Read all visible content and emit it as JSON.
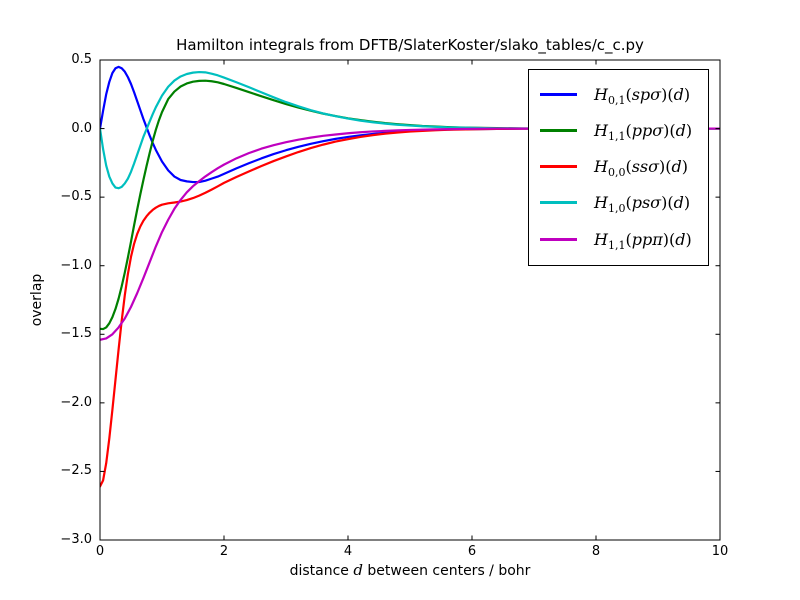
{
  "figure": {
    "background": "#ffffff",
    "border_color": "#000000"
  },
  "chart_data": {
    "type": "line",
    "title": "Hamilton integrals from DFTB/SlaterKoster/slako_tables/c_c.py",
    "xlabel": "distance d between centers / bohr",
    "xlabel_parts": {
      "pre": "distance",
      "var": "d",
      "post": "between centers / bohr"
    },
    "ylabel": "overlap",
    "xlim": [
      0,
      10
    ],
    "ylim": [
      -3.0,
      0.5
    ],
    "grid": false,
    "legend_position": "upper right",
    "x_ticks": [
      {
        "value": 0,
        "label": "0"
      },
      {
        "value": 2,
        "label": "2"
      },
      {
        "value": 4,
        "label": "4"
      },
      {
        "value": 6,
        "label": "6"
      },
      {
        "value": 8,
        "label": "8"
      },
      {
        "value": 10,
        "label": "10"
      }
    ],
    "y_ticks": [
      {
        "value": 0.5,
        "label": "0.5"
      },
      {
        "value": 0.0,
        "label": "0.0"
      },
      {
        "value": -0.5,
        "label": "−0.5"
      },
      {
        "value": -1.0,
        "label": "−1.0"
      },
      {
        "value": -1.5,
        "label": "−1.5"
      },
      {
        "value": -2.0,
        "label": "−2.0"
      },
      {
        "value": -2.5,
        "label": "−2.5"
      },
      {
        "value": -3.0,
        "label": "−3.0"
      }
    ],
    "series": [
      {
        "name": "H_{0,1}(spσ)(d)",
        "legend": {
          "base": "H",
          "sub": "0,1",
          "arg": "spσ",
          "var": "d"
        },
        "color": "#0000ff",
        "points": [
          [
            0,
            0
          ],
          [
            0.05,
            0.13
          ],
          [
            0.1,
            0.25
          ],
          [
            0.15,
            0.34
          ],
          [
            0.2,
            0.405
          ],
          [
            0.25,
            0.44
          ],
          [
            0.3,
            0.45
          ],
          [
            0.35,
            0.44
          ],
          [
            0.4,
            0.415
          ],
          [
            0.45,
            0.375
          ],
          [
            0.5,
            0.325
          ],
          [
            0.55,
            0.265
          ],
          [
            0.6,
            0.2
          ],
          [
            0.65,
            0.135
          ],
          [
            0.7,
            0.07
          ],
          [
            0.75,
            0.01
          ],
          [
            0.8,
            -0.05
          ],
          [
            0.85,
            -0.105
          ],
          [
            0.9,
            -0.155
          ],
          [
            1.0,
            -0.24
          ],
          [
            1.1,
            -0.305
          ],
          [
            1.2,
            -0.35
          ],
          [
            1.3,
            -0.375
          ],
          [
            1.4,
            -0.385
          ],
          [
            1.5,
            -0.39
          ],
          [
            1.6,
            -0.39
          ],
          [
            1.7,
            -0.38
          ],
          [
            1.8,
            -0.365
          ],
          [
            1.9,
            -0.35
          ],
          [
            2.0,
            -0.33
          ],
          [
            2.2,
            -0.29
          ],
          [
            2.4,
            -0.253
          ],
          [
            2.6,
            -0.218
          ],
          [
            2.8,
            -0.186
          ],
          [
            3.0,
            -0.158
          ],
          [
            3.2,
            -0.133
          ],
          [
            3.4,
            -0.111
          ],
          [
            3.6,
            -0.092
          ],
          [
            3.8,
            -0.075
          ],
          [
            4.0,
            -0.061
          ],
          [
            4.2,
            -0.049
          ],
          [
            4.4,
            -0.039
          ],
          [
            4.6,
            -0.031
          ],
          [
            4.8,
            -0.024
          ],
          [
            5.0,
            -0.018
          ],
          [
            5.2,
            -0.014
          ],
          [
            5.4,
            -0.01
          ],
          [
            5.6,
            -0.007
          ],
          [
            5.8,
            -0.005
          ],
          [
            6.0,
            -0.004
          ],
          [
            6.4,
            -0.002
          ],
          [
            6.8,
            -0.001
          ],
          [
            7.2,
            0
          ],
          [
            10,
            0
          ]
        ]
      },
      {
        "name": "H_{1,1}(ppσ)(d)",
        "legend": {
          "base": "H",
          "sub": "1,1",
          "arg": "ppσ",
          "var": "d"
        },
        "color": "#008000",
        "points": [
          [
            0,
            -1.46
          ],
          [
            0.05,
            -1.462
          ],
          [
            0.1,
            -1.45
          ],
          [
            0.15,
            -1.42
          ],
          [
            0.2,
            -1.375
          ],
          [
            0.25,
            -1.315
          ],
          [
            0.3,
            -1.24
          ],
          [
            0.35,
            -1.15
          ],
          [
            0.4,
            -1.05
          ],
          [
            0.45,
            -0.94
          ],
          [
            0.5,
            -0.825
          ],
          [
            0.55,
            -0.705
          ],
          [
            0.6,
            -0.59
          ],
          [
            0.65,
            -0.48
          ],
          [
            0.7,
            -0.375
          ],
          [
            0.75,
            -0.275
          ],
          [
            0.8,
            -0.18
          ],
          [
            0.85,
            -0.09
          ],
          [
            0.9,
            -0.01
          ],
          [
            0.95,
            0.06
          ],
          [
            1.0,
            0.12
          ],
          [
            1.1,
            0.215
          ],
          [
            1.2,
            0.27
          ],
          [
            1.3,
            0.307
          ],
          [
            1.4,
            0.329
          ],
          [
            1.5,
            0.342
          ],
          [
            1.6,
            0.348
          ],
          [
            1.7,
            0.349
          ],
          [
            1.8,
            0.345
          ],
          [
            1.9,
            0.337
          ],
          [
            2.0,
            0.325
          ],
          [
            2.2,
            0.296
          ],
          [
            2.4,
            0.266
          ],
          [
            2.6,
            0.236
          ],
          [
            2.8,
            0.207
          ],
          [
            3.0,
            0.179
          ],
          [
            3.2,
            0.153
          ],
          [
            3.4,
            0.13
          ],
          [
            3.6,
            0.109
          ],
          [
            3.8,
            0.091
          ],
          [
            4.0,
            0.075
          ],
          [
            4.2,
            0.062
          ],
          [
            4.4,
            0.05
          ],
          [
            4.6,
            0.04
          ],
          [
            4.8,
            0.032
          ],
          [
            5.0,
            0.025
          ],
          [
            5.2,
            0.019
          ],
          [
            5.4,
            0.015
          ],
          [
            5.6,
            0.011
          ],
          [
            5.8,
            0.008
          ],
          [
            6.0,
            0.006
          ],
          [
            6.4,
            0.003
          ],
          [
            6.8,
            0.001
          ],
          [
            7.2,
            0
          ],
          [
            10,
            0
          ]
        ]
      },
      {
        "name": "H_{0,0}(ssσ)(d)",
        "legend": {
          "base": "H",
          "sub": "0,0",
          "arg": "ssσ",
          "var": "d"
        },
        "color": "#ff0000",
        "points": [
          [
            0,
            -2.61
          ],
          [
            0.05,
            -2.565
          ],
          [
            0.1,
            -2.44
          ],
          [
            0.15,
            -2.26
          ],
          [
            0.2,
            -2.05
          ],
          [
            0.25,
            -1.83
          ],
          [
            0.3,
            -1.61
          ],
          [
            0.35,
            -1.4
          ],
          [
            0.4,
            -1.215
          ],
          [
            0.45,
            -1.06
          ],
          [
            0.5,
            -0.935
          ],
          [
            0.55,
            -0.84
          ],
          [
            0.6,
            -0.768
          ],
          [
            0.65,
            -0.714
          ],
          [
            0.7,
            -0.672
          ],
          [
            0.75,
            -0.64
          ],
          [
            0.8,
            -0.614
          ],
          [
            0.85,
            -0.593
          ],
          [
            0.9,
            -0.577
          ],
          [
            0.95,
            -0.564
          ],
          [
            1.0,
            -0.555
          ],
          [
            1.1,
            -0.545
          ],
          [
            1.2,
            -0.539
          ],
          [
            1.3,
            -0.532
          ],
          [
            1.4,
            -0.521
          ],
          [
            1.5,
            -0.507
          ],
          [
            1.6,
            -0.489
          ],
          [
            1.7,
            -0.468
          ],
          [
            1.8,
            -0.445
          ],
          [
            1.9,
            -0.421
          ],
          [
            2.0,
            -0.396
          ],
          [
            2.2,
            -0.353
          ],
          [
            2.4,
            -0.313
          ],
          [
            2.6,
            -0.274
          ],
          [
            2.8,
            -0.237
          ],
          [
            3.0,
            -0.203
          ],
          [
            3.2,
            -0.171
          ],
          [
            3.4,
            -0.142
          ],
          [
            3.6,
            -0.117
          ],
          [
            3.8,
            -0.095
          ],
          [
            4.0,
            -0.077
          ],
          [
            4.2,
            -0.061
          ],
          [
            4.4,
            -0.048
          ],
          [
            4.6,
            -0.037
          ],
          [
            4.8,
            -0.029
          ],
          [
            5.0,
            -0.022
          ],
          [
            5.2,
            -0.017
          ],
          [
            5.4,
            -0.012
          ],
          [
            5.6,
            -0.009
          ],
          [
            5.8,
            -0.007
          ],
          [
            6.0,
            -0.005
          ],
          [
            6.4,
            -0.002
          ],
          [
            6.8,
            -0.001
          ],
          [
            7.2,
            0
          ],
          [
            10,
            0
          ]
        ]
      },
      {
        "name": "H_{1,0}(psσ)(d)",
        "legend": {
          "base": "H",
          "sub": "1,0",
          "arg": "psσ",
          "var": "d"
        },
        "color": "#00bfbf",
        "points": [
          [
            0,
            0
          ],
          [
            0.05,
            -0.15
          ],
          [
            0.1,
            -0.27
          ],
          [
            0.15,
            -0.35
          ],
          [
            0.2,
            -0.4
          ],
          [
            0.25,
            -0.43
          ],
          [
            0.3,
            -0.435
          ],
          [
            0.35,
            -0.425
          ],
          [
            0.4,
            -0.4
          ],
          [
            0.45,
            -0.365
          ],
          [
            0.5,
            -0.315
          ],
          [
            0.55,
            -0.255
          ],
          [
            0.6,
            -0.19
          ],
          [
            0.65,
            -0.125
          ],
          [
            0.7,
            -0.06
          ],
          [
            0.75,
            -0.005
          ],
          [
            0.8,
            0.05
          ],
          [
            0.85,
            0.105
          ],
          [
            0.9,
            0.155
          ],
          [
            1.0,
            0.24
          ],
          [
            1.1,
            0.305
          ],
          [
            1.2,
            0.35
          ],
          [
            1.3,
            0.38
          ],
          [
            1.4,
            0.398
          ],
          [
            1.5,
            0.408
          ],
          [
            1.6,
            0.412
          ],
          [
            1.7,
            0.41
          ],
          [
            1.8,
            0.4
          ],
          [
            1.9,
            0.388
          ],
          [
            2.0,
            0.372
          ],
          [
            2.2,
            0.338
          ],
          [
            2.4,
            0.302
          ],
          [
            2.6,
            0.265
          ],
          [
            2.8,
            0.228
          ],
          [
            3.0,
            0.193
          ],
          [
            3.2,
            0.162
          ],
          [
            3.4,
            0.134
          ],
          [
            3.6,
            0.11
          ],
          [
            3.8,
            0.09
          ],
          [
            4.0,
            0.073
          ],
          [
            4.2,
            0.058
          ],
          [
            4.4,
            0.046
          ],
          [
            4.6,
            0.036
          ],
          [
            4.8,
            0.028
          ],
          [
            5.0,
            0.022
          ],
          [
            5.2,
            0.017
          ],
          [
            5.4,
            0.013
          ],
          [
            5.6,
            0.009
          ],
          [
            5.8,
            0.007
          ],
          [
            6.0,
            0.005
          ],
          [
            6.4,
            0.002
          ],
          [
            6.8,
            0.001
          ],
          [
            7.2,
            0
          ],
          [
            10,
            0
          ]
        ]
      },
      {
        "name": "H_{1,1}(ppπ)(d)",
        "legend": {
          "base": "H",
          "sub": "1,1",
          "arg": "ppπ",
          "var": "d"
        },
        "color": "#bf00bf",
        "points": [
          [
            0,
            -1.54
          ],
          [
            0.1,
            -1.53
          ],
          [
            0.2,
            -1.5
          ],
          [
            0.3,
            -1.45
          ],
          [
            0.4,
            -1.385
          ],
          [
            0.5,
            -1.3
          ],
          [
            0.6,
            -1.2
          ],
          [
            0.7,
            -1.09
          ],
          [
            0.8,
            -0.975
          ],
          [
            0.9,
            -0.86
          ],
          [
            1.0,
            -0.755
          ],
          [
            1.1,
            -0.665
          ],
          [
            1.2,
            -0.585
          ],
          [
            1.3,
            -0.52
          ],
          [
            1.4,
            -0.465
          ],
          [
            1.5,
            -0.42
          ],
          [
            1.6,
            -0.383
          ],
          [
            1.7,
            -0.349
          ],
          [
            1.8,
            -0.318
          ],
          [
            1.9,
            -0.289
          ],
          [
            2.0,
            -0.263
          ],
          [
            2.2,
            -0.217
          ],
          [
            2.4,
            -0.179
          ],
          [
            2.6,
            -0.147
          ],
          [
            2.8,
            -0.121
          ],
          [
            3.0,
            -0.099
          ],
          [
            3.2,
            -0.081
          ],
          [
            3.4,
            -0.066
          ],
          [
            3.6,
            -0.053
          ],
          [
            3.8,
            -0.043
          ],
          [
            4.0,
            -0.034
          ],
          [
            4.2,
            -0.027
          ],
          [
            4.4,
            -0.021
          ],
          [
            4.6,
            -0.017
          ],
          [
            4.8,
            -0.013
          ],
          [
            5.0,
            -0.01
          ],
          [
            5.4,
            -0.006
          ],
          [
            5.8,
            -0.003
          ],
          [
            6.2,
            -0.001
          ],
          [
            6.6,
            0
          ],
          [
            10,
            0
          ]
        ]
      }
    ]
  }
}
